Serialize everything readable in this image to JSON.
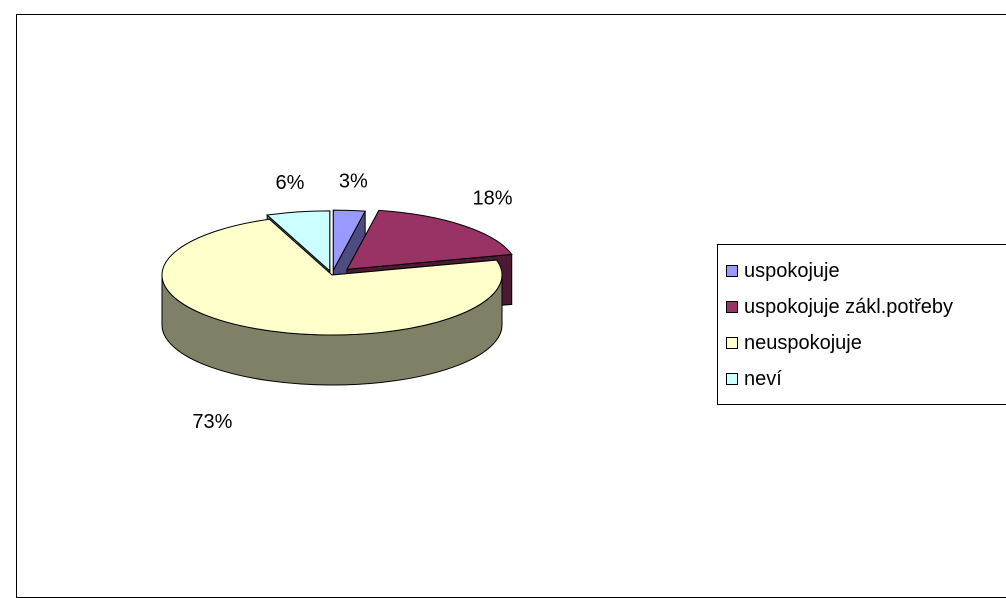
{
  "chart_data": {
    "type": "pie",
    "title": "",
    "three_d": true,
    "exploded": true,
    "legend_position": "right",
    "categories": [
      "uspokojuje",
      "uspokojuje zákl.potřeby",
      "neuspokojuje",
      "neví"
    ],
    "values": [
      3,
      18,
      73,
      6
    ],
    "labels": [
      "3%",
      "18%",
      "73%",
      "6%"
    ],
    "colors": [
      "#9999ff",
      "#993366",
      "#ffffcc",
      "#ccffff"
    ],
    "side_colors": [
      "#4c4c80",
      "#4c1a33",
      "#808066",
      "#668080"
    ]
  }
}
